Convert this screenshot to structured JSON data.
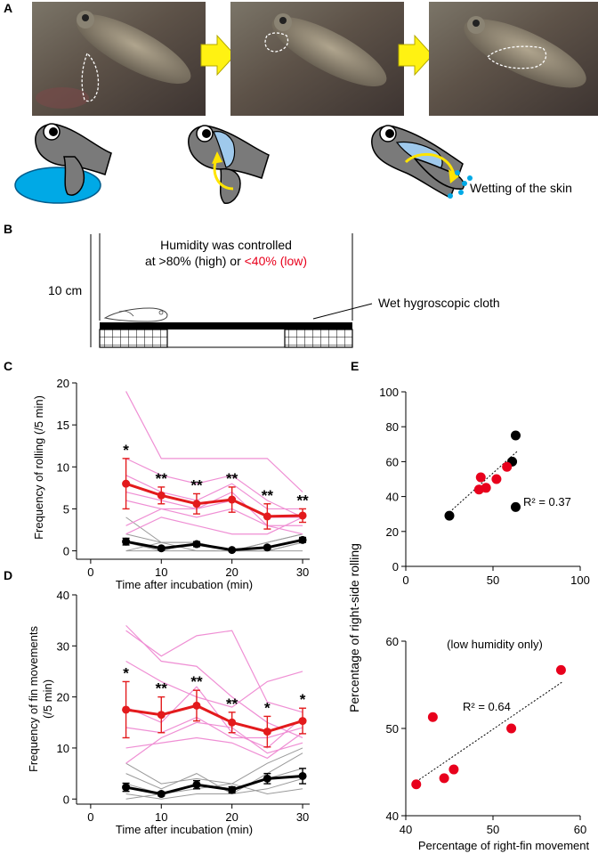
{
  "panels": {
    "A": {
      "label": "A",
      "caption": "Wetting of the skin"
    },
    "B": {
      "label": "B",
      "humidity_line1": "Humidity was controlled",
      "humidity_line2_prefix": "at >80% (high) or ",
      "humidity_line2_low": "<40% (low)",
      "scale_label": "10 cm",
      "cloth_label": "Wet hygroscopic cloth",
      "low_color": "#e8001c"
    },
    "C": {
      "label": "C"
    },
    "D": {
      "label": "D"
    },
    "E": {
      "label": "E",
      "shared_ylabel": "Percentage of right-side rolling"
    }
  },
  "chart_data": [
    {
      "id": "C",
      "type": "line",
      "xlabel": "Time after incubation (min)",
      "ylabel": "Frequency of rolling (/5 min)",
      "xlim": [
        -2,
        31
      ],
      "ylim": [
        -1,
        20
      ],
      "xticks": [
        0,
        10,
        20,
        30
      ],
      "yticks": [
        0,
        5,
        10,
        15,
        20
      ],
      "x": [
        5,
        10,
        15,
        20,
        25,
        30
      ],
      "series": [
        {
          "name": "low humidity mean",
          "color": "#e31a1c",
          "values": [
            8.0,
            6.6,
            5.6,
            6.1,
            4.1,
            4.2
          ],
          "err": [
            3.0,
            1.0,
            1.2,
            1.5,
            1.5,
            0.8
          ]
        },
        {
          "name": "high humidity mean",
          "color": "#000000",
          "values": [
            1.1,
            0.3,
            0.8,
            0.1,
            0.4,
            1.3
          ],
          "err": [
            0.4,
            0.2,
            0.3,
            0.1,
            0.2,
            0.3
          ]
        }
      ],
      "individuals_low": [
        [
          19,
          11,
          11,
          11,
          11,
          7
        ],
        [
          11,
          9,
          8,
          9,
          6,
          4
        ],
        [
          9,
          7,
          6,
          8,
          5,
          5
        ],
        [
          7,
          6,
          5,
          6,
          4,
          4
        ],
        [
          6,
          5,
          4,
          5,
          3,
          3
        ],
        [
          3,
          5,
          5,
          7,
          3,
          2
        ],
        [
          2,
          4,
          3,
          2,
          2,
          4
        ]
      ],
      "individuals_high": [
        [
          4,
          1,
          1,
          0,
          1,
          2
        ],
        [
          2,
          1,
          1,
          0,
          1,
          2
        ],
        [
          1,
          0,
          1,
          0,
          0,
          1
        ],
        [
          0,
          0,
          0,
          0,
          0,
          1
        ],
        [
          0,
          1,
          0,
          0,
          0,
          0
        ]
      ],
      "significance": [
        "*",
        "**",
        "**",
        "**",
        "**",
        "**"
      ]
    },
    {
      "id": "D",
      "type": "line",
      "xlabel": "Time after incubation (min)",
      "ylabel": "Frequency of fin movements",
      "ylabel2": "(/5 min)",
      "xlim": [
        -2,
        31
      ],
      "ylim": [
        -1,
        40
      ],
      "xticks": [
        0,
        10,
        20,
        30
      ],
      "yticks": [
        0,
        10,
        20,
        30,
        40
      ],
      "x": [
        5,
        10,
        15,
        20,
        25,
        30
      ],
      "series": [
        {
          "name": "low humidity mean",
          "color": "#e31a1c",
          "values": [
            17.5,
            16.5,
            18.3,
            15.0,
            13.2,
            15.3
          ],
          "err": [
            5.5,
            3.5,
            3.0,
            2.0,
            3.0,
            2.5
          ]
        },
        {
          "name": "high humidity mean",
          "color": "#000000",
          "values": [
            2.3,
            1.0,
            2.8,
            1.8,
            4.0,
            4.5
          ],
          "err": [
            0.8,
            0.4,
            0.8,
            0.6,
            1.0,
            1.5
          ]
        }
      ],
      "individuals_low": [
        [
          34,
          27,
          26,
          20,
          15,
          12
        ],
        [
          33,
          28,
          32,
          33,
          19,
          17
        ],
        [
          27,
          23,
          20,
          18,
          23,
          25
        ],
        [
          18,
          15,
          22,
          13,
          10,
          16
        ],
        [
          14,
          13,
          16,
          12,
          12,
          14
        ],
        [
          10,
          11,
          12,
          11,
          8,
          13
        ],
        [
          7,
          12,
          15,
          14,
          9,
          11
        ]
      ],
      "individuals_high": [
        [
          7,
          3,
          4,
          3,
          7,
          10
        ],
        [
          5,
          2,
          5,
          1,
          5,
          9
        ],
        [
          3,
          1,
          3,
          2,
          4,
          6
        ],
        [
          1,
          0,
          1,
          1,
          2,
          4
        ],
        [
          0,
          1,
          2,
          3,
          1,
          2
        ]
      ],
      "significance": [
        "*",
        "**",
        "**",
        "**",
        "*",
        "*"
      ]
    },
    {
      "id": "E-top",
      "type": "scatter",
      "xlim": [
        0,
        100
      ],
      "ylim": [
        0,
        100
      ],
      "xticks": [
        0,
        50,
        100
      ],
      "yticks": [
        0,
        20,
        40,
        60,
        80,
        100
      ],
      "annotation": "R² = 0.37",
      "points_red": [
        [
          42,
          44
        ],
        [
          43,
          51
        ],
        [
          46,
          45
        ],
        [
          52,
          50
        ],
        [
          58,
          57
        ]
      ],
      "points_black": [
        [
          25,
          29
        ],
        [
          61,
          60
        ],
        [
          63,
          75
        ],
        [
          63,
          34
        ]
      ],
      "trend": [
        [
          25,
          31
        ],
        [
          64,
          66
        ]
      ]
    },
    {
      "id": "E-bottom",
      "type": "scatter",
      "title": "(low humidity only)",
      "xlabel": "Percentage of right-fin movement",
      "xlim": [
        40,
        60
      ],
      "ylim": [
        40,
        60
      ],
      "xticks": [
        40,
        50,
        60
      ],
      "yticks": [
        40,
        50,
        60
      ],
      "annotation": "R² = 0.64",
      "points_red": [
        [
          41.2,
          43.6
        ],
        [
          43.1,
          51.3
        ],
        [
          44.4,
          44.3
        ],
        [
          45.5,
          45.3
        ],
        [
          52.1,
          50.0
        ],
        [
          57.8,
          56.7
        ]
      ],
      "trend": [
        [
          41.2,
          43.9
        ],
        [
          57.9,
          55.3
        ]
      ]
    }
  ]
}
